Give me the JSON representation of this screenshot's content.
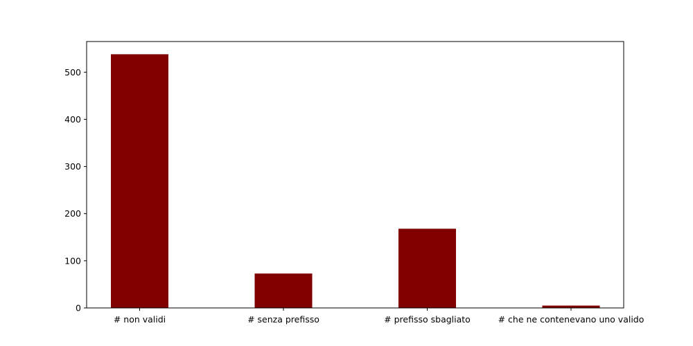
{
  "chart_data": {
    "type": "bar",
    "title": "",
    "xlabel": "",
    "ylabel": "",
    "categories": [
      "# non validi",
      "# senza prefisso",
      "# prefisso sbagliato",
      "# che ne contenevano uno valido"
    ],
    "values": [
      538,
      73,
      168,
      5
    ],
    "ylim": [
      0,
      565
    ],
    "yticks": [
      0,
      100,
      200,
      300,
      400,
      500
    ],
    "grid": false,
    "legend": "none",
    "bar_color": "#800000"
  }
}
